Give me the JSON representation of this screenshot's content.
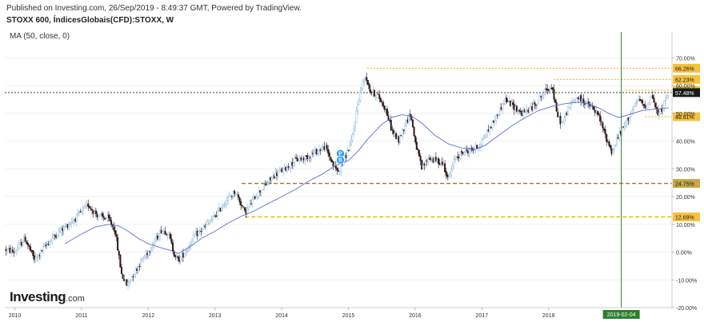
{
  "header": {
    "published": "Published on Investing.com, 26/Sep/2019 - 8:49:37 GMT, Powered by TradingView.",
    "symbol": "STOXX 600, ÍndicesGlobais(CFD):STOXX, W",
    "indicator": "MA (50, close, 0)"
  },
  "logo": {
    "main": "Investing",
    "suffix": ".com"
  },
  "colors": {
    "up_candle": "#8ab4d9",
    "down_candle": "#2d1a1a",
    "ma_line": "#5a6fd6",
    "level_orange": "#f0b000",
    "level_brown": "#9a7a2a",
    "vertical_marker": "#2e7d32",
    "axis_text": "#333333"
  },
  "chart_data": {
    "type": "candlestick",
    "title": "STOXX 600, ÍndicesGlobais(CFD):STOXX, W",
    "y_unit": "%",
    "ylim": [
      -20,
      75
    ],
    "y_ticks": [
      70,
      60,
      50,
      40,
      30,
      20,
      10,
      0,
      -10,
      -20
    ],
    "y_tick_labels": [
      "70.00%",
      "60.00%",
      "50.00%",
      "40.00%",
      "30.00%",
      "20.00%",
      "10.00%",
      "0.00%",
      "-10.00%",
      "-20.00%"
    ],
    "xlim": [
      2009.85,
      2019.85
    ],
    "x_ticks": [
      "2010",
      "2011",
      "2012",
      "2013",
      "2014",
      "2015",
      "2016",
      "2017",
      "2018"
    ],
    "x_tick_positions": [
      2010,
      2011,
      2012,
      2013,
      2014,
      2015,
      2016,
      2017,
      2018
    ],
    "price_path": [
      [
        2009.85,
        1
      ],
      [
        2010.0,
        0
      ],
      [
        2010.15,
        5
      ],
      [
        2010.3,
        -3
      ],
      [
        2010.45,
        2
      ],
      [
        2010.6,
        6
      ],
      [
        2010.75,
        9
      ],
      [
        2010.9,
        12
      ],
      [
        2011.1,
        17
      ],
      [
        2011.25,
        13
      ],
      [
        2011.4,
        12
      ],
      [
        2011.5,
        8
      ],
      [
        2011.6,
        -8
      ],
      [
        2011.68,
        -12
      ],
      [
        2011.75,
        -9
      ],
      [
        2011.9,
        -3
      ],
      [
        2012.05,
        2
      ],
      [
        2012.2,
        8
      ],
      [
        2012.3,
        7
      ],
      [
        2012.38,
        0
      ],
      [
        2012.45,
        -3
      ],
      [
        2012.55,
        0
      ],
      [
        2012.7,
        6
      ],
      [
        2012.85,
        9
      ],
      [
        2013.0,
        13
      ],
      [
        2013.15,
        18
      ],
      [
        2013.3,
        22
      ],
      [
        2013.4,
        17
      ],
      [
        2013.45,
        14
      ],
      [
        2013.6,
        20
      ],
      [
        2013.75,
        24
      ],
      [
        2013.9,
        28
      ],
      [
        2014.05,
        30
      ],
      [
        2014.2,
        33
      ],
      [
        2014.35,
        34
      ],
      [
        2014.5,
        36
      ],
      [
        2014.65,
        38
      ],
      [
        2014.78,
        31
      ],
      [
        2014.85,
        29
      ],
      [
        2014.95,
        34
      ],
      [
        2015.05,
        40
      ],
      [
        2015.15,
        55
      ],
      [
        2015.25,
        64
      ],
      [
        2015.33,
        58
      ],
      [
        2015.45,
        56
      ],
      [
        2015.55,
        52
      ],
      [
        2015.65,
        44
      ],
      [
        2015.75,
        40
      ],
      [
        2015.85,
        46
      ],
      [
        2015.93,
        50
      ],
      [
        2016.0,
        40
      ],
      [
        2016.1,
        30
      ],
      [
        2016.2,
        34
      ],
      [
        2016.3,
        33
      ],
      [
        2016.42,
        32
      ],
      [
        2016.5,
        26
      ],
      [
        2016.6,
        34
      ],
      [
        2016.72,
        36
      ],
      [
        2016.85,
        37
      ],
      [
        2016.95,
        38
      ],
      [
        2017.05,
        42
      ],
      [
        2017.2,
        48
      ],
      [
        2017.35,
        55
      ],
      [
        2017.5,
        52
      ],
      [
        2017.6,
        50
      ],
      [
        2017.75,
        52
      ],
      [
        2017.85,
        55
      ],
      [
        2017.95,
        58
      ],
      [
        2018.05,
        60
      ],
      [
        2018.12,
        50
      ],
      [
        2018.2,
        46
      ],
      [
        2018.3,
        52
      ],
      [
        2018.42,
        56
      ],
      [
        2018.55,
        54
      ],
      [
        2018.65,
        52
      ],
      [
        2018.75,
        49
      ],
      [
        2018.85,
        42
      ],
      [
        2018.95,
        36
      ],
      [
        2019.05,
        42
      ],
      [
        2019.15,
        46
      ],
      [
        2019.25,
        51
      ],
      [
        2019.35,
        55
      ],
      [
        2019.45,
        52
      ],
      [
        2019.55,
        57
      ],
      [
        2019.6,
        52
      ],
      [
        2019.65,
        49
      ],
      [
        2019.72,
        53
      ],
      [
        2019.8,
        57.48
      ]
    ],
    "moving_average": {
      "name": "MA (50, close, 0)",
      "points": [
        [
          2010.75,
          3
        ],
        [
          2011.0,
          6.5
        ],
        [
          2011.2,
          9
        ],
        [
          2011.4,
          10
        ],
        [
          2011.55,
          9.5
        ],
        [
          2011.7,
          7.5
        ],
        [
          2011.85,
          5
        ],
        [
          2012.0,
          3
        ],
        [
          2012.2,
          1.5
        ],
        [
          2012.35,
          0.5
        ],
        [
          2012.45,
          -0.5
        ],
        [
          2012.6,
          1.5
        ],
        [
          2012.8,
          5
        ],
        [
          2013.0,
          7.5
        ],
        [
          2013.2,
          10.5
        ],
        [
          2013.4,
          13
        ],
        [
          2013.6,
          15
        ],
        [
          2013.8,
          17.5
        ],
        [
          2014.0,
          20
        ],
        [
          2014.2,
          22.5
        ],
        [
          2014.4,
          25.5
        ],
        [
          2014.6,
          28
        ],
        [
          2014.8,
          31
        ],
        [
          2015.0,
          33
        ],
        [
          2015.15,
          36.5
        ],
        [
          2015.3,
          41
        ],
        [
          2015.5,
          46
        ],
        [
          2015.65,
          48.5
        ],
        [
          2015.8,
          49.5
        ],
        [
          2015.95,
          49
        ],
        [
          2016.1,
          46.5
        ],
        [
          2016.3,
          42
        ],
        [
          2016.5,
          39
        ],
        [
          2016.7,
          37.5
        ],
        [
          2016.9,
          37
        ],
        [
          2017.05,
          38.5
        ],
        [
          2017.25,
          42
        ],
        [
          2017.45,
          45.5
        ],
        [
          2017.65,
          48.5
        ],
        [
          2017.85,
          51
        ],
        [
          2018.05,
          52.5
        ],
        [
          2018.25,
          53.5
        ],
        [
          2018.45,
          54
        ],
        [
          2018.6,
          53.5
        ],
        [
          2018.75,
          52
        ],
        [
          2018.9,
          50
        ],
        [
          2019.05,
          48.5
        ],
        [
          2019.2,
          49.5
        ],
        [
          2019.4,
          51
        ],
        [
          2019.6,
          51.5
        ],
        [
          2019.8,
          52
        ]
      ]
    },
    "levels": [
      {
        "label": "66.26%",
        "value": 66.26,
        "style": "dotted",
        "color": "#f0b000",
        "from": 2015.28
      },
      {
        "label": "62.23%",
        "value": 62.23,
        "style": "dotted",
        "color": "#f0b000",
        "from": 2018.08
      },
      {
        "label": "58.29%",
        "value": 58.29,
        "style": "dotted",
        "color": "#f0b000",
        "from": 2019.15
      },
      {
        "label": "57.48%",
        "value": 57.48,
        "style": "dotted",
        "color": "#444444",
        "from": 2009.85,
        "current": true
      },
      {
        "label": "48.81%",
        "value": 48.81,
        "style": "dotted",
        "color": "#f0b000",
        "from": 2019.45
      },
      {
        "label": "24.75%",
        "value": 24.75,
        "style": "dashed",
        "color": "#9a7a2a",
        "from": 2013.4
      },
      {
        "label": "12.69%",
        "value": 12.69,
        "style": "dashed",
        "color": "#f0b000",
        "from": 2013.45
      }
    ],
    "marker_line": {
      "x": 2019.09,
      "label": "2019-02-04"
    },
    "annotation_badge": {
      "x": 2014.88,
      "y": 35.5,
      "labels": [
        "P",
        "B"
      ]
    }
  }
}
